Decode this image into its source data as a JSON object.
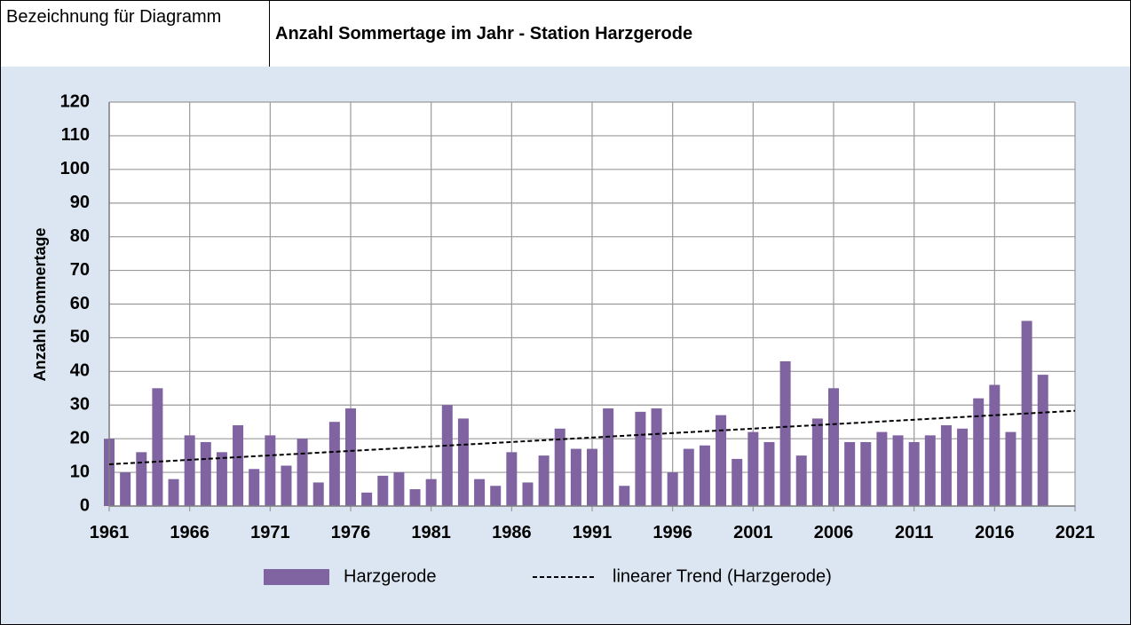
{
  "field_label": "Bezeichnung für Diagramm",
  "chart_data": {
    "type": "bar",
    "title": "Anzahl Sommertage im Jahr - Station Harzgerode",
    "y_label": "Anzahl Sommertage",
    "x": [
      1961,
      1962,
      1963,
      1964,
      1965,
      1966,
      1967,
      1968,
      1969,
      1970,
      1971,
      1972,
      1973,
      1974,
      1975,
      1976,
      1977,
      1978,
      1979,
      1980,
      1981,
      1982,
      1983,
      1984,
      1985,
      1986,
      1987,
      1988,
      1989,
      1990,
      1991,
      1992,
      1993,
      1994,
      1995,
      1996,
      1997,
      1998,
      1999,
      2000,
      2001,
      2002,
      2003,
      2004,
      2005,
      2006,
      2007,
      2008,
      2009,
      2010,
      2011,
      2012,
      2013,
      2014,
      2015,
      2016,
      2017,
      2018,
      2019
    ],
    "series": [
      {
        "name": "Harzgerode",
        "color": "#8064a2",
        "values": [
          20,
          10,
          16,
          35,
          8,
          21,
          19,
          16,
          24,
          11,
          21,
          12,
          20,
          7,
          25,
          29,
          4,
          9,
          10,
          5,
          8,
          30,
          26,
          8,
          6,
          16,
          7,
          15,
          23,
          17,
          17,
          29,
          6,
          28,
          29,
          10,
          17,
          18,
          27,
          14,
          22,
          19,
          43,
          15,
          26,
          35,
          19,
          19,
          22,
          21,
          19,
          21,
          24,
          23,
          32,
          36,
          22,
          55,
          39
        ]
      }
    ],
    "trend": {
      "name": "linearer Trend (Harzgerode)",
      "color": "#000000",
      "x": [
        1961,
        2021
      ],
      "values": [
        12.4,
        28.3
      ]
    },
    "xlim": [
      1961,
      2021
    ],
    "xticks": [
      1961,
      1966,
      1971,
      1976,
      1981,
      1986,
      1991,
      1996,
      2001,
      2006,
      2011,
      2016,
      2021
    ],
    "ylim": [
      0,
      120
    ],
    "yticks": [
      0,
      10,
      20,
      30,
      40,
      50,
      60,
      70,
      80,
      90,
      100,
      110,
      120
    ],
    "grid": true,
    "legend": "bottom"
  }
}
